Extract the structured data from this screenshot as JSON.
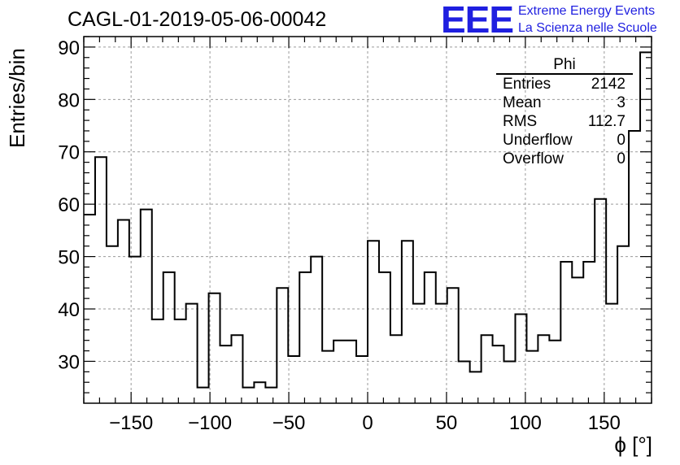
{
  "title": "CAGL-01-2019-05-06-00042",
  "logo": {
    "mark": "EEE",
    "line1": "Extreme Energy Events",
    "line2": "La Scienza nelle Scuole",
    "color": "#1f1fe0"
  },
  "stats": {
    "name": "Phi",
    "rows": [
      {
        "label": "Entries",
        "value": "2142"
      },
      {
        "label": "Mean",
        "value": "3"
      },
      {
        "label": "RMS",
        "value": "112.7"
      },
      {
        "label": "Underflow",
        "value": "0"
      },
      {
        "label": "Overflow",
        "value": "0"
      }
    ]
  },
  "chart_data": {
    "type": "histogram",
    "title": "CAGL-01-2019-05-06-00042",
    "xlabel": "ϕ [°]",
    "ylabel": "Entries/bin",
    "xlim": [
      -180,
      180
    ],
    "ylim": [
      22,
      92
    ],
    "bin_width": 7.2,
    "xticks": [
      -150,
      -100,
      -50,
      0,
      50,
      100,
      150
    ],
    "xtick_labels": [
      "−150",
      "−100",
      "−50",
      "0",
      "50",
      "100",
      "150"
    ],
    "yticks": [
      30,
      40,
      50,
      60,
      70,
      80,
      90
    ],
    "ytick_labels": [
      "30",
      "40",
      "50",
      "60",
      "70",
      "80",
      "90"
    ],
    "grid": true,
    "legend": "top-right",
    "series": [
      {
        "values": [
          58,
          69,
          52,
          57,
          50,
          59,
          38,
          47,
          38,
          41,
          25,
          43,
          33,
          35,
          25,
          26,
          25,
          44,
          31,
          47,
          50,
          32,
          34,
          34,
          31,
          53,
          47,
          35,
          53,
          41,
          47,
          41,
          44,
          30,
          28,
          35,
          33,
          30,
          39,
          32,
          35,
          34,
          49,
          46,
          49,
          61,
          41,
          52,
          74,
          89
        ]
      }
    ]
  }
}
